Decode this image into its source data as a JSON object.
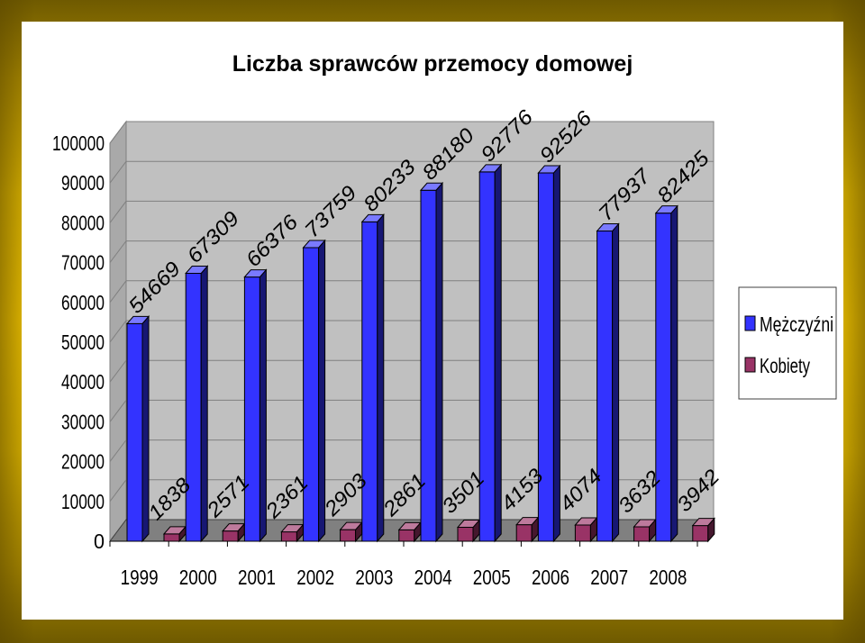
{
  "chart_data": {
    "type": "bar",
    "title": "Liczba sprawców przemocy  domowej",
    "categories": [
      "1999",
      "2000",
      "2001",
      "2002",
      "2003",
      "2004",
      "2005",
      "2006",
      "2007",
      "2008"
    ],
    "series": [
      {
        "name": "Mężczyźni",
        "color": "#3333ff",
        "values": [
          54669,
          67309,
          66376,
          73759,
          80233,
          88180,
          92776,
          92526,
          77937,
          82425
        ]
      },
      {
        "name": "Kobiety",
        "color": "#993366",
        "values": [
          1838,
          2571,
          2361,
          2903,
          2861,
          3501,
          4153,
          4074,
          3632,
          3942
        ]
      }
    ],
    "ylim": [
      0,
      100000
    ],
    "yticks": [
      "0",
      "10000",
      "20000",
      "30000",
      "40000",
      "50000",
      "60000",
      "70000",
      "80000",
      "90000",
      "100000"
    ],
    "xlabel": "",
    "ylabel": "",
    "grid": true,
    "legend": "right",
    "style": "3d-clustered-column",
    "background": "#c0c0c0"
  }
}
